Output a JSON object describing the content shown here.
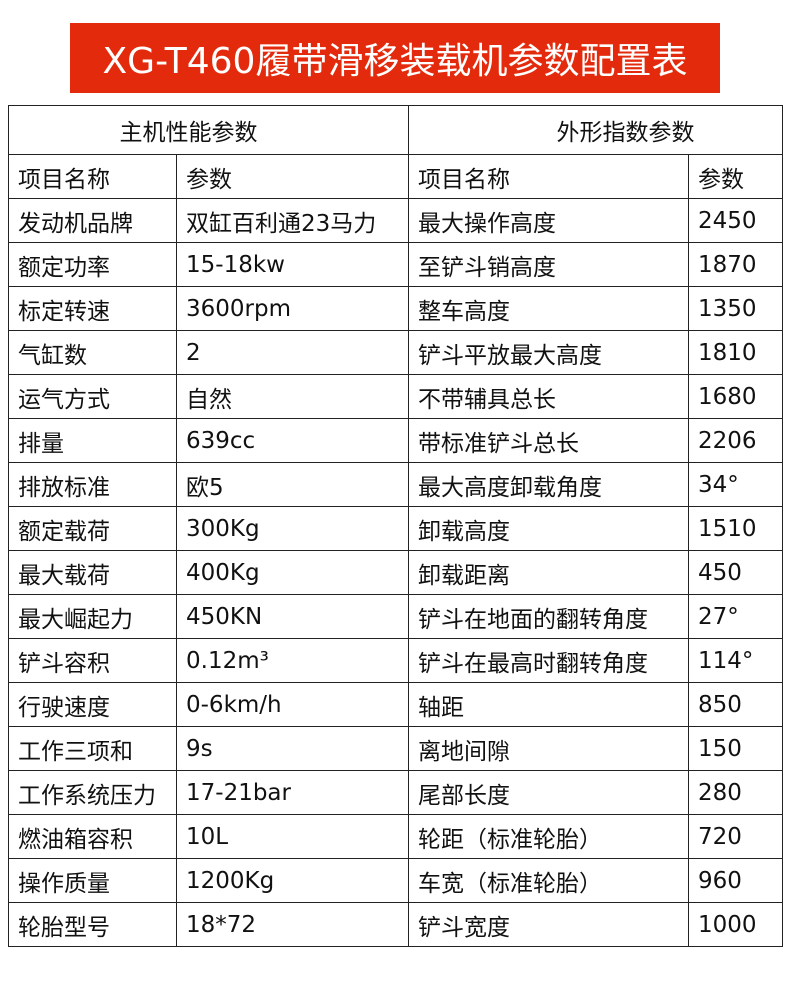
{
  "title": "XG-T460履带滑移装载机参数配置表",
  "colors": {
    "banner": "#e42a0c"
  },
  "sections": {
    "left": "主机性能参数",
    "right": "外形指数参数"
  },
  "headers": [
    "项目名称",
    "参数",
    "项目名称",
    "参数"
  ],
  "rows": [
    [
      "发动机品牌",
      "双缸百利通23马力",
      "最大操作高度",
      "2450"
    ],
    [
      "额定功率",
      "15-18kw",
      "至铲斗销高度",
      "1870"
    ],
    [
      "标定转速",
      "3600rpm",
      "整车高度",
      "1350"
    ],
    [
      "气缸数",
      "2",
      "铲斗平放最大高度",
      "1810"
    ],
    [
      "运气方式",
      "自然",
      "不带辅具总长",
      "1680"
    ],
    [
      "排量",
      "639cc",
      "带标准铲斗总长",
      "2206"
    ],
    [
      "排放标准",
      "欧5",
      "最大高度卸载角度",
      "34°"
    ],
    [
      "额定载荷",
      "300Kg",
      "卸载高度",
      "1510"
    ],
    [
      "最大载荷",
      "400Kg",
      "卸载距离",
      "450"
    ],
    [
      "最大崛起力",
      "450KN",
      "铲斗在地面的翻转角度",
      "27°"
    ],
    [
      "铲斗容积",
      "0.12m³",
      "铲斗在最高时翻转角度",
      "114°"
    ],
    [
      "行驶速度",
      "0-6km/h",
      "轴距",
      "850"
    ],
    [
      "工作三项和",
      "9s",
      "离地间隙",
      "150"
    ],
    [
      "工作系统压力",
      "17-21bar",
      "尾部长度",
      "280"
    ],
    [
      "燃油箱容积",
      "10L",
      "轮距（标准轮胎）",
      "720"
    ],
    [
      "操作质量",
      "1200Kg",
      "车宽（标准轮胎）",
      "960"
    ],
    [
      "轮胎型号",
      "18*72",
      "铲斗宽度",
      "1000"
    ]
  ]
}
